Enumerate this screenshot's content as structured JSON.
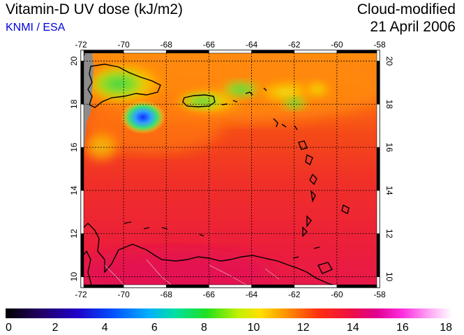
{
  "header": {
    "title": "Vitamin-D UV dose (kJ/m2)",
    "source": "KNMI / ESA",
    "product": "Cloud-modified",
    "date": "21 April 2006"
  },
  "map": {
    "lon_range": [
      -72,
      -58
    ],
    "lat_range": [
      9.5,
      20.5
    ],
    "lon_ticks": [
      "-72",
      "-70",
      "-68",
      "-66",
      "-64",
      "-62",
      "-60",
      "-58"
    ],
    "lat_ticks": [
      "10",
      "12",
      "14",
      "16",
      "18",
      "20"
    ],
    "colors": {
      "background_dose": "#f03a20",
      "high_dose_south": "#e8104a",
      "orange_north": "#ff7a10",
      "green_islands": "#40d040",
      "blue_spot": "#2050ff",
      "no_data": "#909090"
    }
  },
  "colorbar": {
    "ticks": [
      "0",
      "2",
      "4",
      "6",
      "8",
      "10",
      "12",
      "14",
      "16",
      "18"
    ],
    "min": 0,
    "max": 18
  }
}
